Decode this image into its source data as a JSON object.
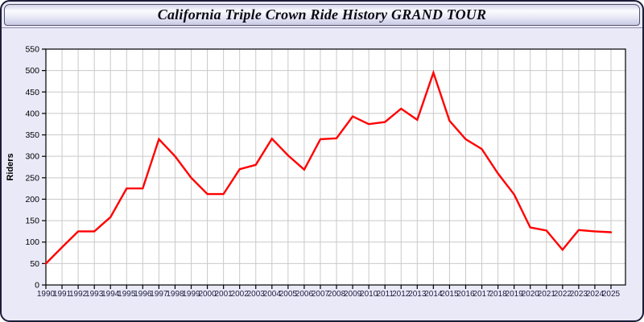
{
  "header": {
    "title": "California Triple Crown Ride History GRAND TOUR"
  },
  "chart_data": {
    "type": "line",
    "title": "California Triple Crown Ride History GRAND TOUR",
    "xlabel": "",
    "ylabel": "Riders",
    "x": [
      1990,
      1991,
      1992,
      1993,
      1994,
      1995,
      1996,
      1997,
      1998,
      1999,
      2000,
      2001,
      2002,
      2003,
      2004,
      2005,
      2006,
      2007,
      2008,
      2009,
      2010,
      2011,
      2012,
      2013,
      2014,
      2015,
      2016,
      2017,
      2018,
      2019,
      2020,
      2021,
      2022,
      2023,
      2024,
      2025
    ],
    "values": [
      50,
      88,
      125,
      125,
      158,
      225,
      225,
      340,
      300,
      250,
      212,
      212,
      270,
      280,
      341,
      302,
      269,
      340,
      342,
      393,
      375,
      380,
      411,
      385,
      495,
      383,
      340,
      317,
      260,
      211,
      134,
      127,
      82,
      128,
      125,
      123
    ],
    "ylim": [
      0,
      550
    ],
    "ytick_step": 50,
    "grid": true,
    "legend": "none",
    "colors": {
      "line": "#ff0000",
      "plot_background": "#ffffff",
      "page_background": "#e9e9f8",
      "grid": "#c9c9c9",
      "axis": "#000000",
      "ytick_label": "#000000",
      "xtick_label": "#1b1b3d"
    }
  }
}
